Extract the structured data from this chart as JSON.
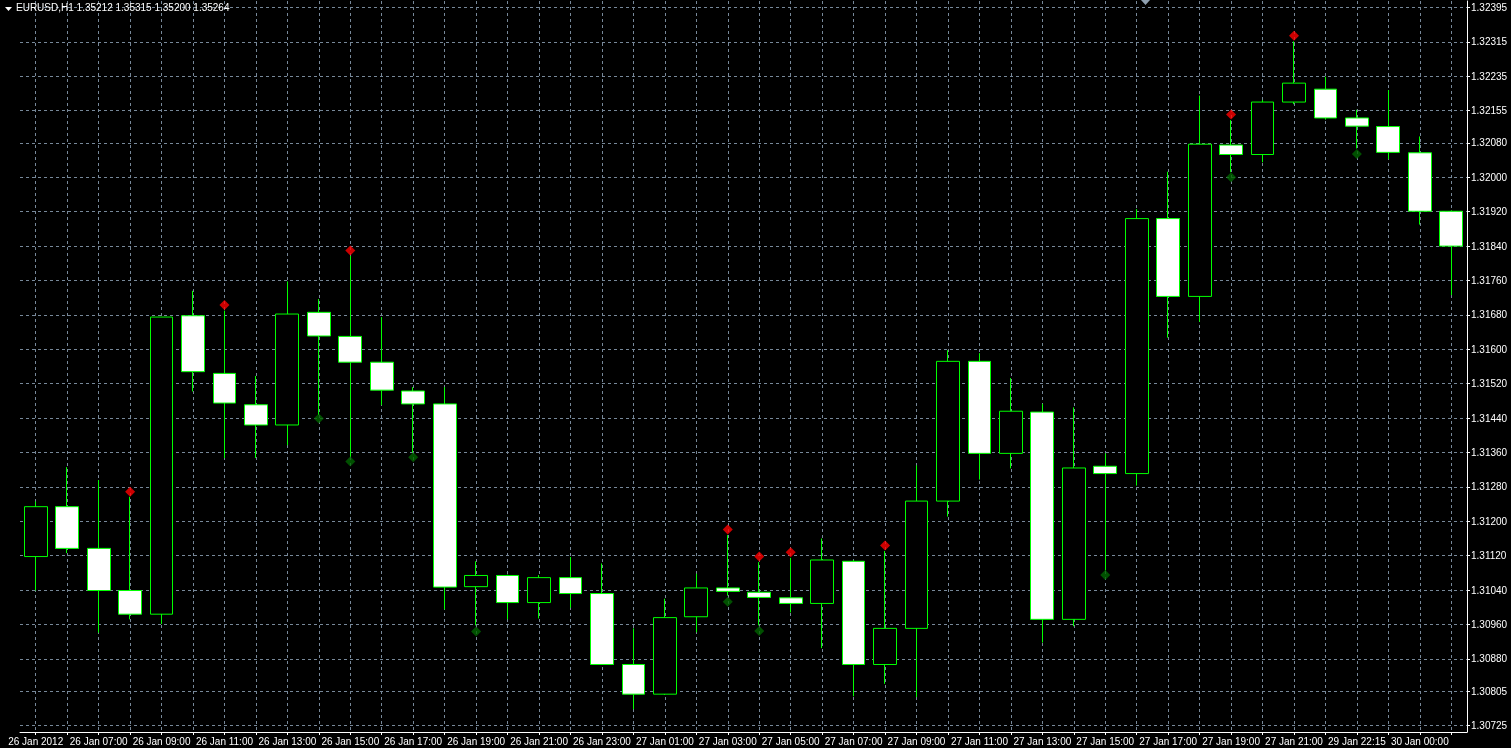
{
  "chart_data": {
    "type": "candlestick",
    "title": "EURUSD,H1 1.35212 1.35315 1.35200 1.35264",
    "categories": [
      "26 Jan 2012",
      null,
      "26 Jan 07:00",
      null,
      "26 Jan 09:00",
      null,
      "26 Jan 11:00",
      null,
      "26 Jan 13:00",
      null,
      "26 Jan 15:00",
      null,
      "26 Jan 17:00",
      null,
      "26 Jan 19:00",
      null,
      "26 Jan 21:00",
      null,
      "26 Jan 23:00",
      null,
      "27 Jan 01:00",
      null,
      "27 Jan 03:00",
      null,
      "27 Jan 05:00",
      null,
      "27 Jan 07:00",
      null,
      "27 Jan 09:00",
      null,
      "27 Jan 11:00",
      null,
      "27 Jan 13:00",
      null,
      "27 Jan 15:00",
      null,
      "27 Jan 17:00",
      null,
      "27 Jan 19:00",
      null,
      "27 Jan 21:00",
      null,
      "29 Jan 22:15",
      null,
      "30 Jan 00:00",
      null
    ],
    "ohlc": [
      [
        1.31118,
        1.31246,
        1.31039,
        1.31234
      ],
      [
        1.31234,
        1.31326,
        1.31126,
        1.31137
      ],
      [
        1.31137,
        1.31296,
        1.30941,
        1.31039
      ],
      [
        1.31039,
        1.31257,
        1.30972,
        1.30984
      ],
      [
        1.30984,
        1.31675,
        1.30961,
        1.31675
      ],
      [
        1.31678,
        1.31736,
        1.31502,
        1.31548
      ],
      [
        1.31544,
        1.3169,
        1.31347,
        1.31475
      ],
      [
        1.31471,
        1.31538,
        1.31347,
        1.31424
      ],
      [
        1.31424,
        1.31758,
        1.31377,
        1.31682
      ],
      [
        1.31686,
        1.31717,
        1.31448,
        1.31631
      ],
      [
        1.3163,
        1.31817,
        1.3135,
        1.3157
      ],
      [
        1.3157,
        1.31675,
        1.3147,
        1.31505
      ],
      [
        1.31503,
        1.31512,
        1.3136,
        1.31473
      ],
      [
        1.31473,
        1.31512,
        1.30995,
        1.31047
      ],
      [
        1.31048,
        1.31107,
        1.30958,
        1.31074
      ],
      [
        1.31074,
        1.31076,
        1.30972,
        1.31011
      ],
      [
        1.31011,
        1.31075,
        1.30974,
        1.31069
      ],
      [
        1.31069,
        1.31117,
        1.30999,
        1.31032
      ],
      [
        1.31032,
        1.31102,
        1.30867,
        1.30867
      ],
      [
        1.30867,
        1.30951,
        1.30763,
        1.30798
      ],
      [
        1.30798,
        1.3102,
        1.30796,
        1.30976
      ],
      [
        1.30978,
        1.31078,
        1.30942,
        1.31045
      ],
      [
        1.31045,
        1.31168,
        1.31027,
        1.31037
      ],
      [
        1.31035,
        1.31105,
        1.30958,
        1.31023
      ],
      [
        1.31022,
        1.31115,
        1.30988,
        1.31009
      ],
      [
        1.31009,
        1.3116,
        1.30905,
        1.3111
      ],
      [
        1.31107,
        1.3111,
        1.30793,
        1.30867
      ],
      [
        1.30867,
        1.31131,
        1.30822,
        1.30951
      ],
      [
        1.30951,
        1.3133,
        1.30791,
        1.31247
      ],
      [
        1.31247,
        1.31598,
        1.31211,
        1.31572
      ],
      [
        1.31572,
        1.31591,
        1.31297,
        1.31358
      ],
      [
        1.31358,
        1.31533,
        1.31323,
        1.31456
      ],
      [
        1.31454,
        1.31473,
        1.30918,
        1.30972
      ],
      [
        1.30972,
        1.31465,
        1.30956,
        1.31324
      ],
      [
        1.31328,
        1.31358,
        1.31086,
        1.31311
      ],
      [
        1.31311,
        1.31926,
        1.31283,
        1.31904
      ],
      [
        1.31904,
        1.32013,
        1.31627,
        1.31723
      ],
      [
        1.31723,
        1.3219,
        1.31664,
        1.32077
      ],
      [
        1.32075,
        1.32133,
        1.32012,
        1.32053
      ],
      [
        1.32053,
        1.3218,
        1.32035,
        1.32175
      ],
      [
        1.32175,
        1.32316,
        1.3217,
        1.32219
      ],
      [
        1.32205,
        1.32234,
        1.32134,
        1.32138
      ],
      [
        1.32138,
        1.32157,
        1.32067,
        1.32119
      ],
      [
        1.32118,
        1.32203,
        1.32042,
        1.32058
      ],
      [
        1.32057,
        1.32095,
        1.3189,
        1.31921
      ],
      [
        1.31921,
        1.31923,
        1.31726,
        1.3184
      ]
    ],
    "color": "#00ff00",
    "series": [
      {
        "type": "scatter",
        "color": "#ff0000",
        "marker": "diamond",
        "values": [
          null,
          null,
          null,
          1.31269,
          null,
          null,
          1.31703,
          null,
          null,
          null,
          1.3183,
          null,
          null,
          null,
          null,
          null,
          null,
          null,
          null,
          null,
          null,
          null,
          1.31181,
          1.31118,
          1.31128,
          null,
          null,
          1.31144,
          null,
          null,
          null,
          null,
          null,
          null,
          null,
          null,
          null,
          null,
          1.32146,
          null,
          1.32329,
          null,
          null,
          null,
          null,
          null
        ]
      },
      {
        "type": "scatter",
        "color": "#006400",
        "marker": "diamond",
        "values": [
          null,
          null,
          null,
          null,
          null,
          null,
          null,
          null,
          null,
          1.31439,
          1.31339,
          null,
          1.31349,
          null,
          1.30944,
          null,
          null,
          null,
          null,
          null,
          null,
          null,
          1.31013,
          1.30945,
          null,
          null,
          null,
          null,
          null,
          null,
          null,
          null,
          null,
          null,
          1.31075,
          null,
          null,
          null,
          1.32,
          null,
          null,
          null,
          1.32054,
          null,
          null,
          null
        ]
      }
    ],
    "ylim": [
      1.3071,
      1.3241
    ],
    "yticks": [
      1.30725,
      1.30805,
      {
        "value": 1.3088,
        "label": "1.30880"
      },
      {
        "value": 1.3096,
        "label": "1.30960"
      },
      {
        "value": 1.3104,
        "label": "1.31040"
      },
      {
        "value": 1.3112,
        "label": "1.31120"
      },
      {
        "value": 1.312,
        "label": "1.31200"
      },
      {
        "value": 1.3128,
        "label": "1.31280"
      },
      {
        "value": 1.3136,
        "label": "1.31360"
      },
      {
        "value": 1.3144,
        "label": "1.31440"
      },
      {
        "value": 1.3152,
        "label": "1.31520"
      },
      {
        "value": 1.316,
        "label": "1.31600"
      },
      {
        "value": 1.3168,
        "label": "1.31680"
      },
      {
        "value": 1.3176,
        "label": "1.31760"
      },
      {
        "value": 1.3184,
        "label": "1.31840"
      },
      {
        "value": 1.3192,
        "label": "1.31920"
      },
      {
        "value": 1.32,
        "label": "1.32000"
      },
      {
        "value": 1.3208,
        "label": "1.32080"
      },
      1.32155,
      1.32235,
      1.32315,
      1.32395
    ],
    "grid": true
  }
}
